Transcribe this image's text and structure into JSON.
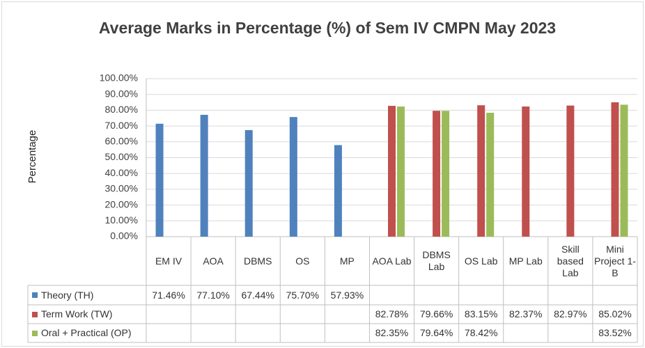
{
  "chart_data": {
    "type": "bar",
    "title": "Average Marks in Percentage (%) of Sem  IV CMPN May 2023",
    "y_label": "Percentage",
    "categories": [
      "EM IV",
      "AOA",
      "DBMS",
      "OS",
      "MP",
      "AOA Lab",
      "DBMS Lab",
      "OS Lab",
      "MP Lab",
      "Skill based Lab",
      "Mini Project 1-B"
    ],
    "series": [
      {
        "name": "Theory (TH)",
        "color": "#4f81bd",
        "values": [
          71.46,
          77.1,
          67.44,
          75.7,
          57.93,
          null,
          null,
          null,
          null,
          null,
          null
        ],
        "value_labels": [
          "71.46%",
          "77.10%",
          "67.44%",
          "75.70%",
          "57.93%",
          null,
          null,
          null,
          null,
          null,
          null
        ]
      },
      {
        "name": "Term Work (TW)",
        "color": "#c0504d",
        "values": [
          null,
          null,
          null,
          null,
          null,
          82.78,
          79.66,
          83.15,
          82.37,
          82.97,
          85.02
        ],
        "value_labels": [
          null,
          null,
          null,
          null,
          null,
          "82.78%",
          "79.66%",
          "83.15%",
          "82.37%",
          "82.97%",
          "85.02%"
        ]
      },
      {
        "name": "Oral + Practical (OP)",
        "color": "#9bbb59",
        "values": [
          null,
          null,
          null,
          null,
          null,
          82.35,
          79.64,
          78.42,
          null,
          null,
          83.52
        ],
        "value_labels": [
          null,
          null,
          null,
          null,
          null,
          "82.35%",
          "79.64%",
          "78.42%",
          null,
          null,
          "83.52%"
        ]
      }
    ],
    "ylim": [
      0,
      100
    ],
    "yticks": [
      {
        "value": 0,
        "label": "0.00%"
      },
      {
        "value": 10,
        "label": "10.00%"
      },
      {
        "value": 20,
        "label": "20.00%"
      },
      {
        "value": 30,
        "label": "30.00%"
      },
      {
        "value": 40,
        "label": "40.00%"
      },
      {
        "value": 50,
        "label": "50.00%"
      },
      {
        "value": 60,
        "label": "60.00%"
      },
      {
        "value": 70,
        "label": "70.00%"
      },
      {
        "value": 80,
        "label": "80.00%"
      },
      {
        "value": 90,
        "label": "90.00%"
      },
      {
        "value": 100,
        "label": "100.00%"
      }
    ],
    "grid": true
  }
}
